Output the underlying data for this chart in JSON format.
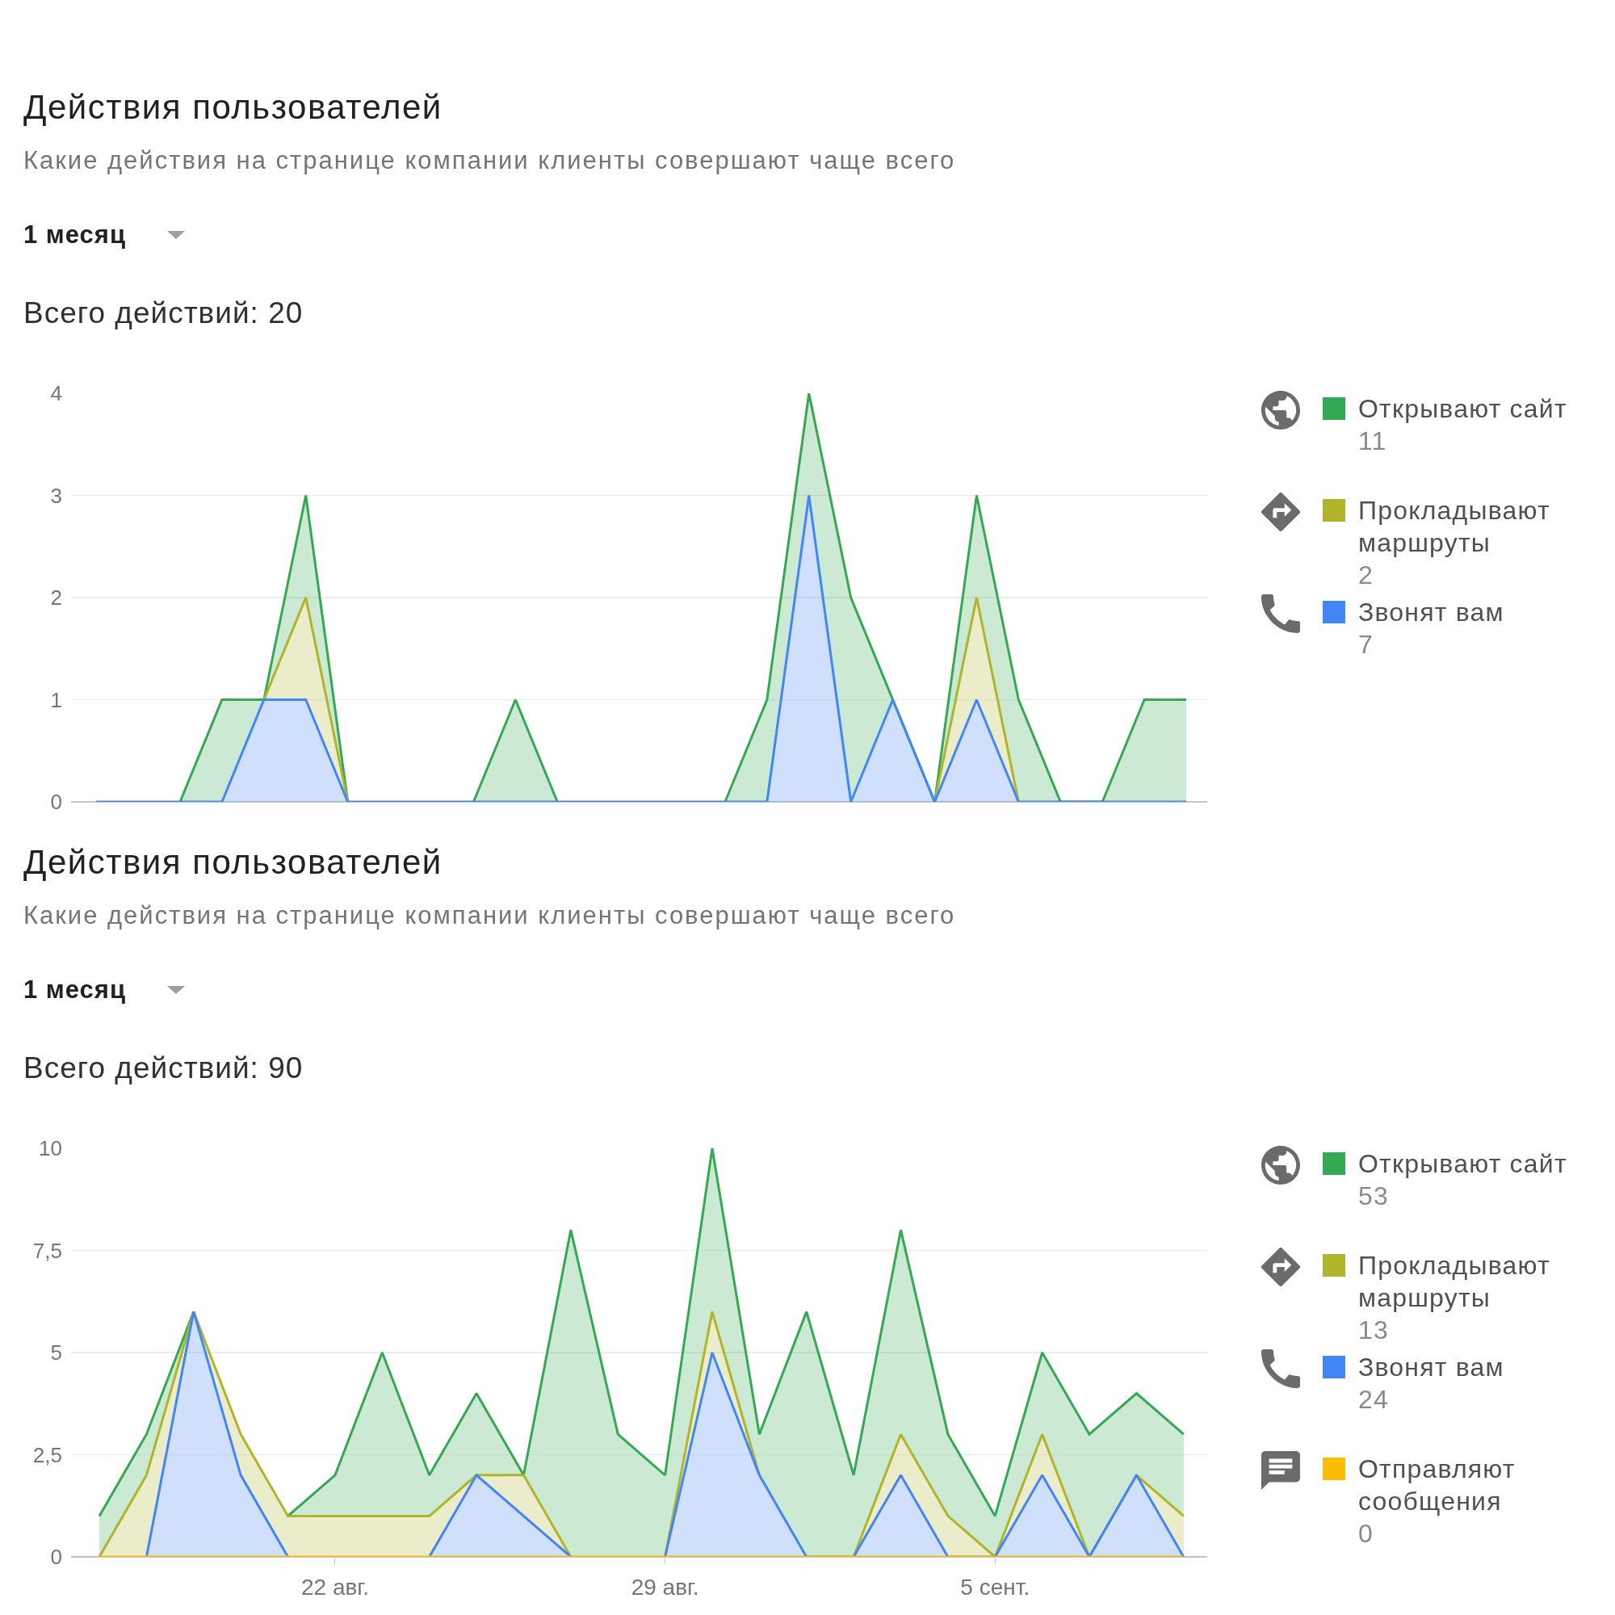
{
  "chart_data": [
    {
      "type": "area",
      "title": "Действия пользователей",
      "subtitle": "Какие действия на странице компании клиенты совершают чаще всего",
      "annotations": [
        "1 месяц",
        "Всего действий: 20",
        "11",
        "2",
        "7"
      ],
      "categories": [
        null,
        null,
        null,
        null,
        null,
        null,
        null,
        null,
        null,
        null,
        null,
        null,
        null,
        null,
        null,
        null,
        null,
        null,
        null,
        null,
        null,
        null,
        null,
        null,
        null,
        null,
        null
      ],
      "stacked": true,
      "series": [
        {
          "name": "Звонят вам",
          "color": "#4285f4",
          "values": [
            0,
            0,
            0,
            0,
            1,
            1,
            0,
            0,
            0,
            0,
            0,
            0,
            0,
            0,
            0,
            0,
            0,
            3,
            0,
            1,
            0,
            1,
            0,
            0,
            0,
            0,
            0
          ]
        },
        {
          "name": "Прокладывают маршруты",
          "color": "#afb42b",
          "values": [
            null,
            null,
            null,
            null,
            0,
            1,
            0,
            null,
            null,
            null,
            null,
            null,
            null,
            null,
            null,
            null,
            null,
            null,
            null,
            null,
            0,
            1,
            0,
            null,
            null,
            null,
            null
          ]
        },
        {
          "name": "Открывают сайт",
          "color": "#34a853",
          "values": [
            null,
            null,
            0,
            1,
            0,
            1,
            0,
            null,
            null,
            0,
            1,
            0,
            null,
            null,
            null,
            0,
            1,
            1,
            2,
            0,
            0,
            1,
            1,
            0,
            0,
            1,
            1
          ]
        }
      ],
      "ylim": [
        0,
        4
      ],
      "yticks": [
        0,
        1,
        2,
        3,
        4
      ],
      "grid": "y",
      "legend": "right"
    },
    {
      "type": "area",
      "title": "Действия пользователей",
      "subtitle": "Какие действия на странице компании клиенты совершают чаще всего",
      "annotations": [
        "1 месяц",
        "Всего действий: 90",
        "53",
        "13",
        "24",
        "0"
      ],
      "categories": [
        null,
        null,
        null,
        null,
        null,
        "22 авг.",
        null,
        null,
        null,
        null,
        null,
        null,
        "29 авг.",
        null,
        null,
        null,
        null,
        null,
        null,
        "5 сент.",
        null,
        null,
        null,
        null
      ],
      "stacked": true,
      "series": [
        {
          "name": "Отправляют сообщения",
          "color": "#fbbc04",
          "type": "line",
          "values": [
            0,
            0,
            0,
            0,
            0,
            0,
            0,
            0,
            0,
            0,
            0,
            0,
            0,
            0,
            0,
            0,
            0,
            0,
            0,
            0,
            0,
            0,
            0,
            0
          ]
        },
        {
          "name": "Звонят вам",
          "color": "#4285f4",
          "values": [
            null,
            0,
            6,
            2,
            0,
            null,
            null,
            0,
            2,
            1,
            0,
            null,
            0,
            5,
            2,
            0,
            0,
            2,
            0,
            0,
            2,
            0,
            2,
            0
          ]
        },
        {
          "name": "Прокладывают маршруты",
          "color": "#afb42b",
          "values": [
            0,
            2,
            0,
            1,
            1,
            1,
            1,
            1,
            0,
            1,
            0,
            null,
            0,
            1,
            0,
            null,
            0,
            1,
            1,
            0,
            1,
            0,
            0,
            1
          ]
        },
        {
          "name": "Открывают сайт",
          "color": "#34a853",
          "values": [
            1,
            1,
            0,
            null,
            0,
            1,
            4,
            1,
            2,
            0,
            8,
            3,
            2,
            4,
            1,
            6,
            2,
            5,
            2,
            1,
            2,
            3,
            2,
            2
          ]
        }
      ],
      "ylim": [
        0,
        10
      ],
      "yticks": [
        0,
        {
          "value": 2.5,
          "label": "2,5"
        },
        5,
        {
          "value": 7.5,
          "label": "7,5"
        },
        10
      ],
      "grid": "y",
      "legend": "right"
    }
  ]
}
